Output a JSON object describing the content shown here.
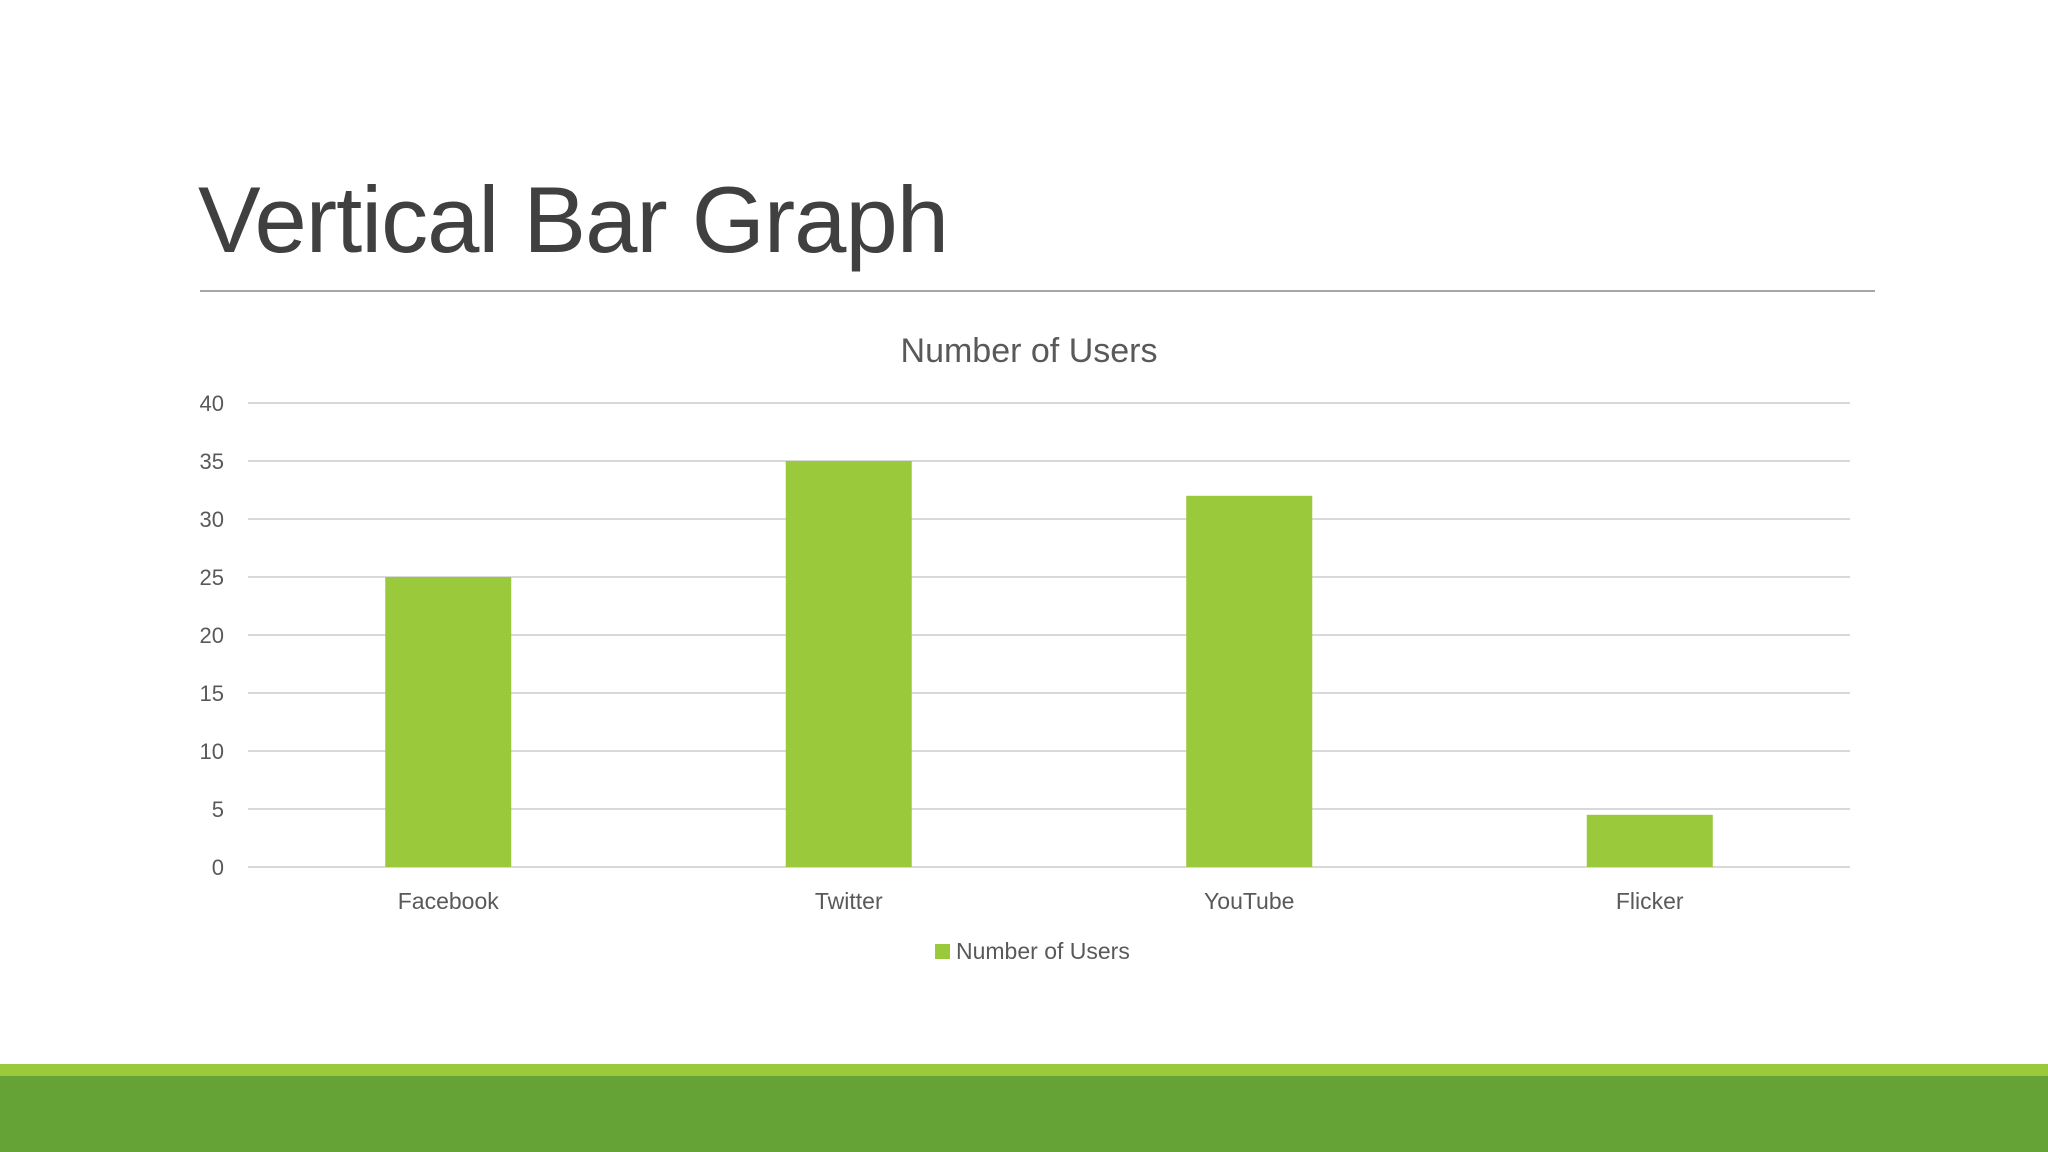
{
  "slide": {
    "title": "Vertical Bar Graph"
  },
  "colors": {
    "bar": "#9aca3c",
    "footer_light": "#9aca3c",
    "footer_dark": "#65a337",
    "grid": "#d9d9d9",
    "text": "#595959"
  },
  "chart_data": {
    "type": "bar",
    "title": "Number of Users",
    "xlabel": "",
    "ylabel": "",
    "categories": [
      "Facebook",
      "Twitter",
      "YouTube",
      "Flicker"
    ],
    "series": [
      {
        "name": "Number of Users",
        "values": [
          25,
          35,
          32,
          4.5
        ]
      }
    ],
    "ylim": [
      0,
      40
    ],
    "yticks": [
      0,
      5,
      10,
      15,
      20,
      25,
      30,
      35,
      40
    ],
    "grid": true,
    "legend_position": "bottom"
  }
}
